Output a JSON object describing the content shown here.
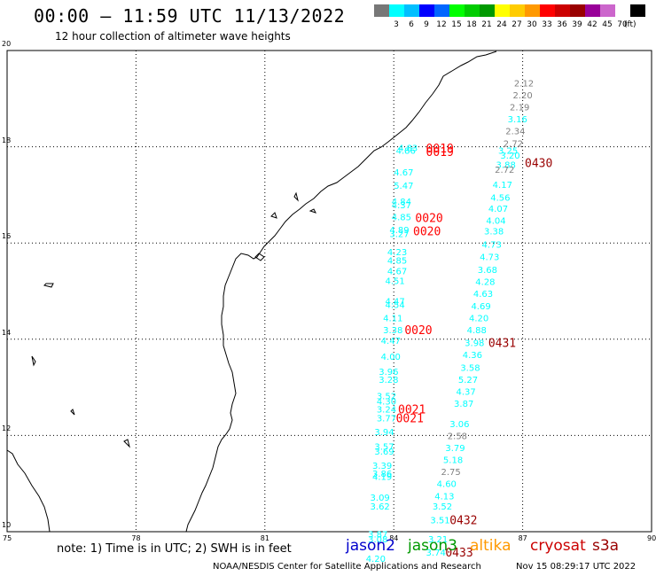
{
  "header": {
    "title": "00:00 – 11:59 UTC 11/13/2022",
    "subtitle": "12 hour collection of altimeter wave heights"
  },
  "colorbar": {
    "colors": [
      "#777777",
      "#00ffff",
      "#00bfff",
      "#0000ff",
      "#0066ff",
      "#00ff00",
      "#00cc00",
      "#009900",
      "#ffff00",
      "#ffcc00",
      "#ff9900",
      "#ff0000",
      "#cc0000",
      "#990000",
      "#990099",
      "#cc66cc",
      "#ffffff",
      "#000000"
    ],
    "labels": [
      "3",
      "6",
      "9",
      "12",
      "15",
      "18",
      "21",
      "24",
      "27",
      "30",
      "33",
      "36",
      "39",
      "42",
      "45",
      "70"
    ],
    "unit": "(ft)"
  },
  "map": {
    "lon_range": [
      75,
      90
    ],
    "lat_range": [
      10,
      20
    ],
    "x_ticks": [
      "75",
      "78",
      "81",
      "84",
      "87",
      "90"
    ],
    "y_ticks": [
      "20",
      "18",
      "16",
      "14",
      "12",
      "10"
    ],
    "grid": true,
    "coastline_color": "#000000"
  },
  "observations": [
    {
      "t": "2.12",
      "lon": 86.8,
      "lat": 19.33,
      "c": "#808080"
    },
    {
      "t": "2.20",
      "lon": 86.77,
      "lat": 19.08,
      "c": "#808080"
    },
    {
      "t": "2.19",
      "lon": 86.7,
      "lat": 18.83,
      "c": "#808080"
    },
    {
      "t": "3.16",
      "lon": 86.65,
      "lat": 18.58,
      "c": "#00ffff"
    },
    {
      "t": "2.34",
      "lon": 86.6,
      "lat": 18.33,
      "c": "#808080"
    },
    {
      "t": "2.72",
      "lon": 86.55,
      "lat": 18.08,
      "c": "#808080"
    },
    {
      "t": "3.20",
      "lon": 86.48,
      "lat": 17.83,
      "c": "#00ffff"
    },
    {
      "t": "4.83",
      "lon": 84.1,
      "lat": 17.98,
      "c": "#00ffff"
    },
    {
      "t": "4.86",
      "lon": 84.05,
      "lat": 17.93,
      "c": "#00ffff"
    },
    {
      "t": "3.25",
      "lon": 86.43,
      "lat": 17.93,
      "c": "#00ffff"
    },
    {
      "t": "3.88",
      "lon": 86.38,
      "lat": 17.63,
      "c": "#00ffff"
    },
    {
      "t": "2.72",
      "lon": 86.35,
      "lat": 17.53,
      "c": "#808080"
    },
    {
      "t": "4.67",
      "lon": 84.0,
      "lat": 17.48,
      "c": "#00ffff"
    },
    {
      "t": "5.47",
      "lon": 84.0,
      "lat": 17.2,
      "c": "#00ffff"
    },
    {
      "t": "4.17",
      "lon": 86.3,
      "lat": 17.22,
      "c": "#00ffff"
    },
    {
      "t": "4.56",
      "lon": 86.25,
      "lat": 16.95,
      "c": "#00ffff"
    },
    {
      "t": "4.84",
      "lon": 83.95,
      "lat": 16.87,
      "c": "#00ffff"
    },
    {
      "t": "4.37",
      "lon": 83.95,
      "lat": 16.8,
      "c": "#00ffff"
    },
    {
      "t": "4.07",
      "lon": 86.2,
      "lat": 16.72,
      "c": "#00ffff"
    },
    {
      "t": "4.85",
      "lon": 83.95,
      "lat": 16.55,
      "c": "#00ffff"
    },
    {
      "t": "4.04",
      "lon": 86.15,
      "lat": 16.47,
      "c": "#00ffff"
    },
    {
      "t": "4.89",
      "lon": 83.9,
      "lat": 16.28,
      "c": "#00ffff"
    },
    {
      "t": "3.27",
      "lon": 83.9,
      "lat": 16.2,
      "c": "#00ffff"
    },
    {
      "t": "3.38",
      "lon": 86.1,
      "lat": 16.25,
      "c": "#00ffff"
    },
    {
      "t": "4.73",
      "lon": 86.05,
      "lat": 15.98,
      "c": "#00ffff"
    },
    {
      "t": "4.23",
      "lon": 83.85,
      "lat": 15.82,
      "c": "#00ffff"
    },
    {
      "t": "4.73",
      "lon": 86.0,
      "lat": 15.72,
      "c": "#00ffff"
    },
    {
      "t": "4.85",
      "lon": 83.85,
      "lat": 15.64,
      "c": "#00ffff"
    },
    {
      "t": "3.68",
      "lon": 85.95,
      "lat": 15.45,
      "c": "#00ffff"
    },
    {
      "t": "4.67",
      "lon": 83.85,
      "lat": 15.42,
      "c": "#00ffff"
    },
    {
      "t": "4.28",
      "lon": 85.9,
      "lat": 15.2,
      "c": "#00ffff"
    },
    {
      "t": "4.51",
      "lon": 83.8,
      "lat": 15.22,
      "c": "#00ffff"
    },
    {
      "t": "4.63",
      "lon": 85.85,
      "lat": 14.95,
      "c": "#00ffff"
    },
    {
      "t": "4.47",
      "lon": 83.8,
      "lat": 14.8,
      "c": "#00ffff"
    },
    {
      "t": "4.54",
      "lon": 83.8,
      "lat": 14.72,
      "c": "#00ffff"
    },
    {
      "t": "4.69",
      "lon": 85.8,
      "lat": 14.7,
      "c": "#00ffff"
    },
    {
      "t": "4.11",
      "lon": 83.75,
      "lat": 14.45,
      "c": "#00ffff"
    },
    {
      "t": "4.20",
      "lon": 85.75,
      "lat": 14.45,
      "c": "#00ffff"
    },
    {
      "t": "3.38",
      "lon": 83.75,
      "lat": 14.2,
      "c": "#00ffff"
    },
    {
      "t": "4.88",
      "lon": 85.7,
      "lat": 14.2,
      "c": "#00ffff"
    },
    {
      "t": "4.47",
      "lon": 83.7,
      "lat": 13.98,
      "c": "#00ffff"
    },
    {
      "t": "3.98",
      "lon": 85.65,
      "lat": 13.93,
      "c": "#00ffff"
    },
    {
      "t": "4.36",
      "lon": 85.6,
      "lat": 13.68,
      "c": "#00ffff"
    },
    {
      "t": "4.00",
      "lon": 83.7,
      "lat": 13.65,
      "c": "#00ffff"
    },
    {
      "t": "3.58",
      "lon": 85.55,
      "lat": 13.42,
      "c": "#00ffff"
    },
    {
      "t": "3.96",
      "lon": 83.65,
      "lat": 13.33,
      "c": "#00ffff"
    },
    {
      "t": "3.28",
      "lon": 83.65,
      "lat": 13.17,
      "c": "#00ffff"
    },
    {
      "t": "5.27",
      "lon": 85.5,
      "lat": 13.17,
      "c": "#00ffff"
    },
    {
      "t": "4.37",
      "lon": 85.45,
      "lat": 12.92,
      "c": "#00ffff"
    },
    {
      "t": "3.52",
      "lon": 83.6,
      "lat": 12.83,
      "c": "#00ffff"
    },
    {
      "t": "4.30",
      "lon": 83.6,
      "lat": 12.72,
      "c": "#00ffff"
    },
    {
      "t": "3.87",
      "lon": 85.4,
      "lat": 12.67,
      "c": "#00ffff"
    },
    {
      "t": "3.24",
      "lon": 83.6,
      "lat": 12.55,
      "c": "#00ffff"
    },
    {
      "t": "3.77",
      "lon": 83.6,
      "lat": 12.37,
      "c": "#00ffff"
    },
    {
      "t": "3.06",
      "lon": 85.3,
      "lat": 12.25,
      "c": "#00ffff"
    },
    {
      "t": "3.94",
      "lon": 83.55,
      "lat": 12.08,
      "c": "#00ffff"
    },
    {
      "t": "2.58",
      "lon": 85.25,
      "lat": 12.0,
      "c": "#808080"
    },
    {
      "t": "3.57",
      "lon": 83.55,
      "lat": 11.78,
      "c": "#00ffff"
    },
    {
      "t": "3.79",
      "lon": 85.2,
      "lat": 11.75,
      "c": "#00ffff"
    },
    {
      "t": "3.69",
      "lon": 83.55,
      "lat": 11.68,
      "c": "#00ffff"
    },
    {
      "t": "5.18",
      "lon": 85.15,
      "lat": 11.5,
      "c": "#00ffff"
    },
    {
      "t": "3.39",
      "lon": 83.5,
      "lat": 11.38,
      "c": "#00ffff"
    },
    {
      "t": "2.75",
      "lon": 85.1,
      "lat": 11.25,
      "c": "#808080"
    },
    {
      "t": "3.86",
      "lon": 83.5,
      "lat": 11.22,
      "c": "#00ffff"
    },
    {
      "t": "4.19",
      "lon": 83.5,
      "lat": 11.15,
      "c": "#00ffff"
    },
    {
      "t": "4.60",
      "lon": 85.0,
      "lat": 11.0,
      "c": "#00ffff"
    },
    {
      "t": "4.13",
      "lon": 84.95,
      "lat": 10.75,
      "c": "#00ffff"
    },
    {
      "t": "3.09",
      "lon": 83.45,
      "lat": 10.72,
      "c": "#00ffff"
    },
    {
      "t": "3.62",
      "lon": 83.45,
      "lat": 10.53,
      "c": "#00ffff"
    },
    {
      "t": "3.52",
      "lon": 84.9,
      "lat": 10.53,
      "c": "#00ffff"
    },
    {
      "t": "3.51",
      "lon": 84.85,
      "lat": 10.25,
      "c": "#00ffff"
    },
    {
      "t": "3.87",
      "lon": 83.4,
      "lat": 9.95,
      "c": "#00ffff"
    },
    {
      "t": "3.08",
      "lon": 83.4,
      "lat": 9.85,
      "c": "#00ffff"
    },
    {
      "t": "3.21",
      "lon": 84.8,
      "lat": 9.85,
      "c": "#00ffff"
    },
    {
      "t": "3.74",
      "lon": 84.75,
      "lat": 9.58,
      "c": "#00ffff"
    },
    {
      "t": "4.20",
      "lon": 83.35,
      "lat": 9.45,
      "c": "#00ffff"
    }
  ],
  "pass_labels": [
    {
      "t": "0019",
      "lon": 84.75,
      "lat": 17.97,
      "c": "#ff0000"
    },
    {
      "t": "0019",
      "lon": 84.75,
      "lat": 17.9,
      "c": "#ff0000"
    },
    {
      "t": "0430",
      "lon": 87.05,
      "lat": 17.67,
      "c": "#990000"
    },
    {
      "t": "0020",
      "lon": 84.5,
      "lat": 16.53,
      "c": "#ff0000"
    },
    {
      "t": "0020",
      "lon": 84.45,
      "lat": 16.25,
      "c": "#ff0000"
    },
    {
      "t": "0020",
      "lon": 84.25,
      "lat": 14.2,
      "c": "#ff0000"
    },
    {
      "t": "0431",
      "lon": 86.2,
      "lat": 13.93,
      "c": "#990000"
    },
    {
      "t": "0021",
      "lon": 84.1,
      "lat": 12.55,
      "c": "#ff0000"
    },
    {
      "t": "0021",
      "lon": 84.05,
      "lat": 12.37,
      "c": "#ff0000"
    },
    {
      "t": "0432",
      "lon": 85.3,
      "lat": 10.25,
      "c": "#990000"
    },
    {
      "t": "0433",
      "lon": 85.2,
      "lat": 9.58,
      "c": "#990000"
    }
  ],
  "footer": {
    "note": "note:  1) Time is in UTC;  2) SWH is in feet",
    "satellites": [
      {
        "name": "jason2",
        "color": "#0000cc"
      },
      {
        "name": "jason3",
        "color": "#009900"
      },
      {
        "name": "altika",
        "color": "#ff9900"
      },
      {
        "name": "cryosat",
        "color": "#cc0000"
      },
      {
        "name": "s3a",
        "color": "#990000"
      }
    ],
    "credit": "NOAA/NESDIS Center for Satellite Applications and Research",
    "updated": "Nov 15 08:29:17 UTC 2022"
  }
}
